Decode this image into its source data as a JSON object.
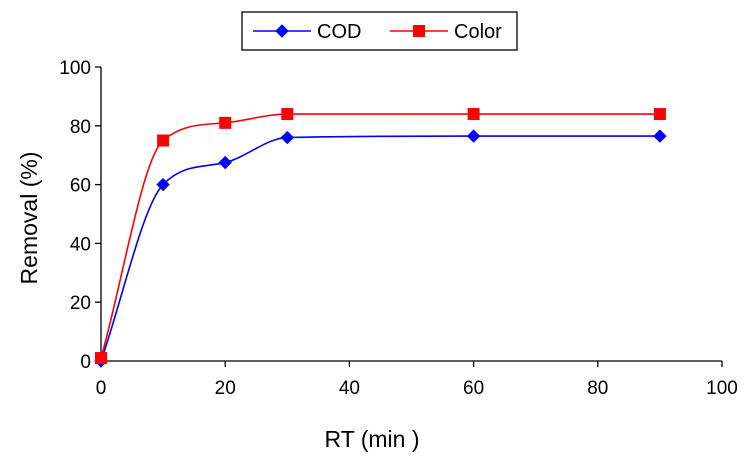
{
  "chart_data": {
    "type": "line",
    "xlabel": "RT (min )",
    "ylabel": "Removal (%)",
    "xlim": [
      0,
      100
    ],
    "ylim": [
      0,
      100
    ],
    "x_ticks": [
      0,
      20,
      40,
      60,
      80,
      100
    ],
    "y_ticks": [
      0,
      20,
      40,
      60,
      80,
      100
    ],
    "x_tick_labels": [
      "0",
      "20",
      "40",
      "60",
      "80",
      "100"
    ],
    "y_tick_labels": [
      "0",
      "20",
      "40",
      "60",
      "80",
      "100"
    ],
    "grid": false,
    "legend_position": "top-center",
    "series": [
      {
        "name": "COD",
        "color": "#0000ff",
        "marker": "diamond",
        "x": [
          0,
          10,
          20,
          30,
          60,
          90
        ],
        "y": [
          0,
          60,
          67.5,
          76,
          76.5,
          76.5
        ]
      },
      {
        "name": "Color",
        "color": "#ff0000",
        "marker": "square",
        "x": [
          0,
          10,
          20,
          30,
          60,
          90
        ],
        "y": [
          1,
          75,
          81,
          84,
          84,
          84
        ]
      }
    ]
  }
}
